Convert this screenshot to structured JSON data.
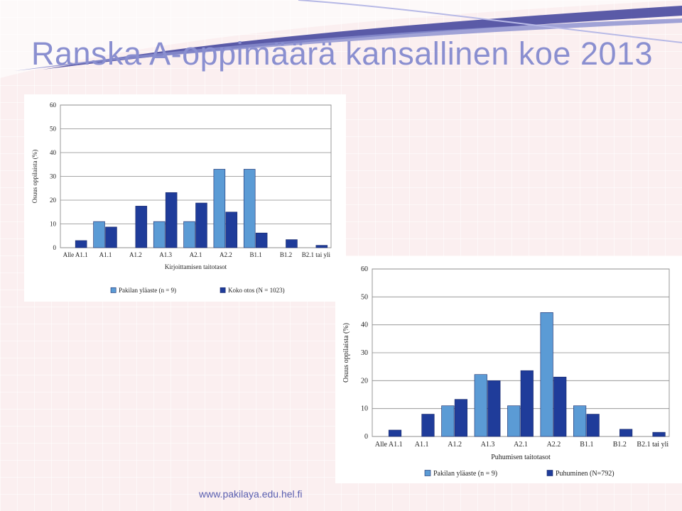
{
  "slide": {
    "title": "Ranska A-oppimäärä kansallinen koe 2013",
    "footer": "www.pakilaya.edu.hel.fi"
  },
  "colors": {
    "light_series": "#5b9bd5",
    "dark_series": "#1f3c9a",
    "title": "#8a8fd0",
    "swoosh": "#3d3f9a"
  },
  "chart_data": [
    {
      "type": "bar",
      "categories": [
        "Alle A1.1",
        "A1.1",
        "A1.2",
        "A1.3",
        "A2.1",
        "A2.2",
        "B1.1",
        "B1.2",
        "B2.1 tai yli"
      ],
      "series": [
        {
          "name": "Pakilan yläaste (n = 9)",
          "values": [
            0,
            11,
            0,
            11,
            11,
            33,
            33,
            0,
            0
          ]
        },
        {
          "name": "Koko otos (N = 1023)",
          "values": [
            3,
            8.7,
            17.5,
            23.2,
            18.8,
            15,
            6.2,
            3.4,
            1
          ]
        }
      ],
      "xlabel": "Kirjoittamisen taitotasot",
      "ylabel": "Osuus oppilaista (%)",
      "ylim": [
        0,
        60
      ],
      "yticks": [
        0,
        10,
        20,
        30,
        40,
        50,
        60
      ],
      "grid": true,
      "legend": "bottom"
    },
    {
      "type": "bar",
      "categories": [
        "Alle A1.1",
        "A1.1",
        "A1.2",
        "A1.3",
        "A2.1",
        "A2.2",
        "B1.1",
        "B1.2",
        "B2.1 tai yli"
      ],
      "series": [
        {
          "name": "Pakilan yläaste (n = 9)",
          "values": [
            0,
            0,
            11,
            22.2,
            11,
            44.4,
            11,
            0,
            0
          ]
        },
        {
          "name": "Puhuminen (N=792)",
          "values": [
            2.3,
            8,
            13.3,
            20,
            23.6,
            21.3,
            8,
            2.6,
            1.5
          ]
        }
      ],
      "xlabel": "Puhumisen taitotasot",
      "ylabel": "Osuus oppilaista (%)",
      "ylim": [
        0,
        60
      ],
      "yticks": [
        0,
        10,
        20,
        30,
        40,
        50,
        60
      ],
      "grid": true,
      "legend": "bottom"
    }
  ]
}
